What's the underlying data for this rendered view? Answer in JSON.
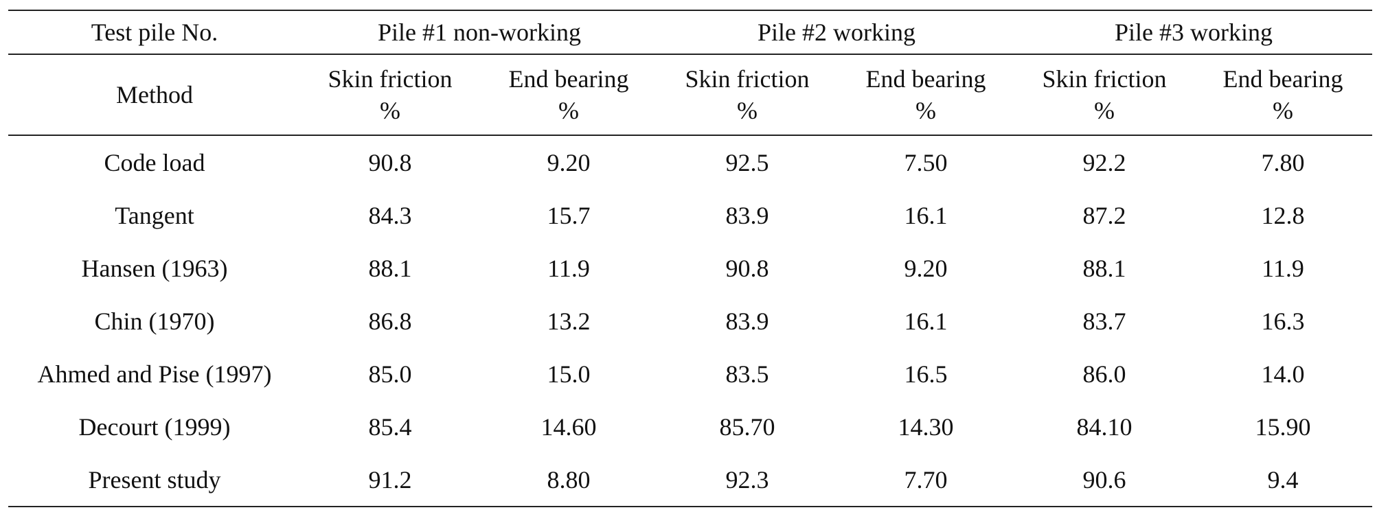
{
  "table": {
    "header_row1": {
      "label": "Test pile No.",
      "piles": [
        "Pile #1 non-working",
        "Pile #2 working",
        "Pile #3 working"
      ]
    },
    "header_row2": {
      "label": "Method",
      "columns": [
        {
          "line1": "Skin friction",
          "line2": "%"
        },
        {
          "line1": "End bearing",
          "line2": "%"
        },
        {
          "line1": "Skin friction",
          "line2": "%"
        },
        {
          "line1": "End bearing",
          "line2": "%"
        },
        {
          "line1": "Skin friction",
          "line2": "%"
        },
        {
          "line1": "End bearing",
          "line2": "%"
        }
      ]
    },
    "rows": [
      {
        "method": "Code load",
        "values": [
          "90.8",
          "9.20",
          "92.5",
          "7.50",
          "92.2",
          "7.80"
        ]
      },
      {
        "method": "Tangent",
        "values": [
          "84.3",
          "15.7",
          "83.9",
          "16.1",
          "87.2",
          "12.8"
        ]
      },
      {
        "method": "Hansen (1963)",
        "values": [
          "88.1",
          "11.9",
          "90.8",
          "9.20",
          "88.1",
          "11.9"
        ]
      },
      {
        "method": "Chin (1970)",
        "values": [
          "86.8",
          "13.2",
          "83.9",
          "16.1",
          "83.7",
          "16.3"
        ]
      },
      {
        "method": "Ahmed and Pise (1997)",
        "values": [
          "85.0",
          "15.0",
          "83.5",
          "16.5",
          "86.0",
          "14.0"
        ]
      },
      {
        "method": "Decourt (1999)",
        "values": [
          "85.4",
          "14.60",
          "85.70",
          "14.30",
          "84.10",
          "15.90"
        ]
      },
      {
        "method": "Present study",
        "values": [
          "91.2",
          "8.80",
          "92.3",
          "7.70",
          "90.6",
          "9.4"
        ]
      }
    ]
  }
}
